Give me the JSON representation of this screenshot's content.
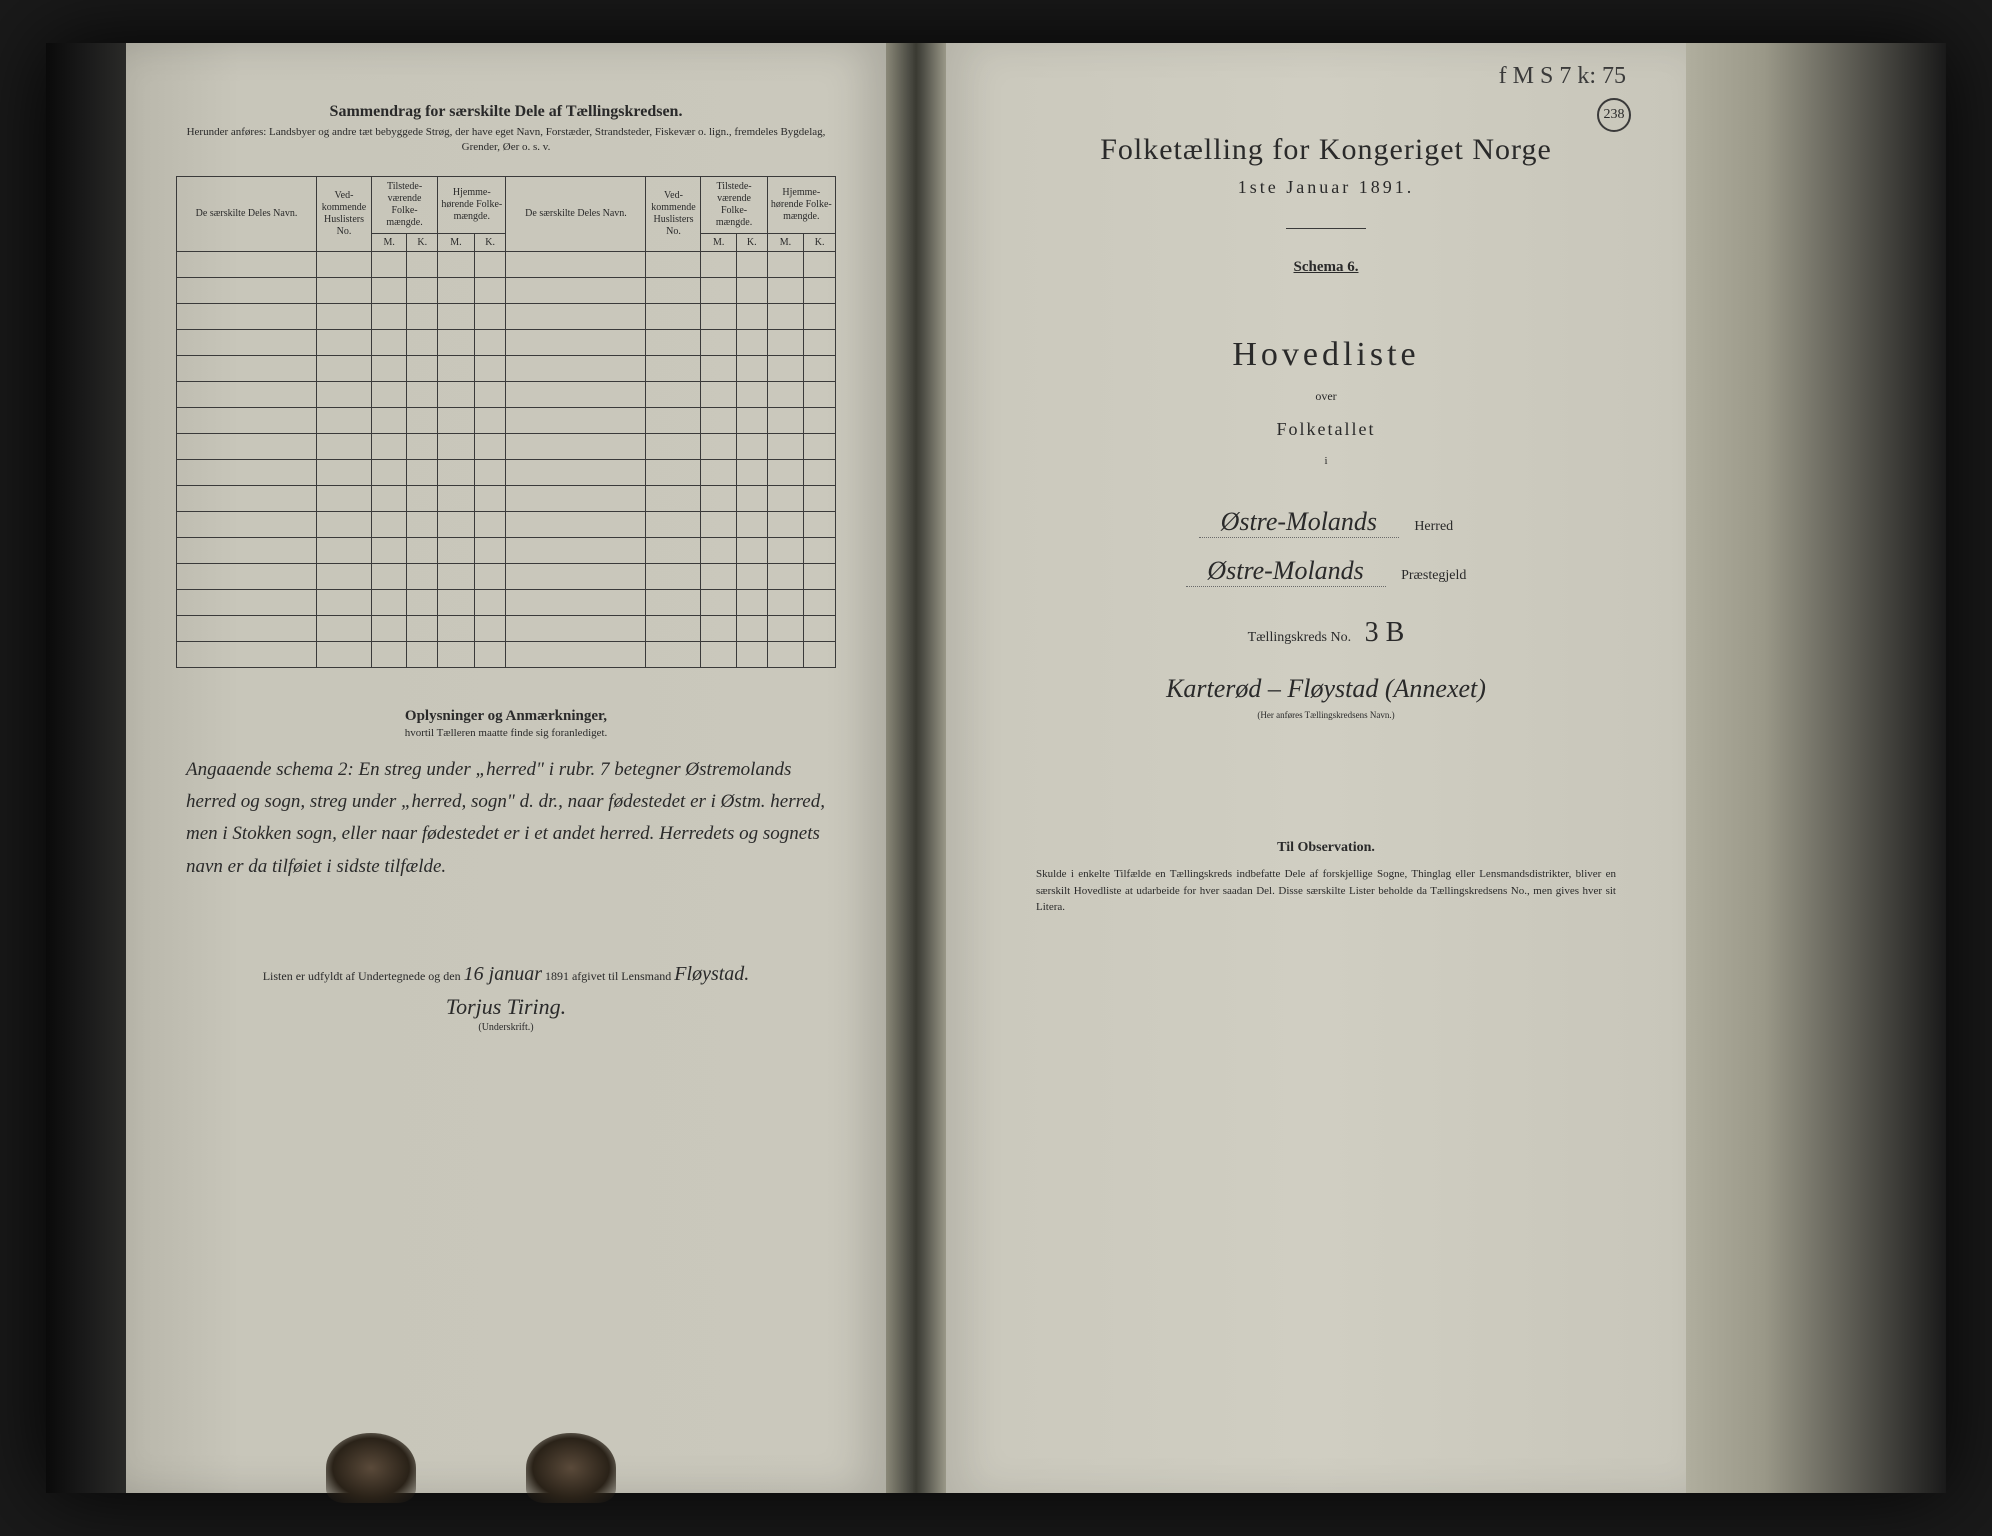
{
  "left": {
    "title": "Sammendrag for særskilte Dele af Tællingskredsen.",
    "subtitle": "Herunder anføres: Landsbyer og andre tæt bebyggede Strøg, der have eget Navn, Forstæder, Strandsteder, Fiskevær o. lign., fremdeles Bygdelag, Grender, Øer o. s. v.",
    "headers": {
      "name": "De særskilte Deles Navn.",
      "ved": "Ved-kommende Huslisters No.",
      "tilstede": "Tilstede-værende Folke-mængde.",
      "hjemme": "Hjemme-hørende Folke-mængde.",
      "m": "M.",
      "k": "K."
    },
    "notes_title": "Oplysninger og Anmærkninger,",
    "notes_sub": "hvortil Tælleren maatte finde sig foranlediget.",
    "handwriting": "Angaaende schema 2: En streg under „herred\" i rubr. 7 betegner Østremolands herred og sogn, streg under „herred, sogn\" d. dr., naar fødestedet er i Østm. herred, men i Stokken sogn, eller naar fødestedet er i et andet herred. Herredets og sognets navn er da tilføiet i sidste tilfælde.",
    "sig_prefix": "Listen er udfyldt af Undertegnede og den",
    "sig_date": "16 januar",
    "sig_mid": "1891 afgivet til Lensmand",
    "sig_lensmand": "Fløystad.",
    "sig_name": "Torjus Tiring.",
    "sig_under": "(Underskrift.)"
  },
  "right": {
    "top_mark": "f M S 7 k: 75",
    "circle": "238",
    "title": "Folketælling for Kongeriget Norge",
    "date": "1ste Januar 1891.",
    "schema": "Schema 6.",
    "hovedliste": "Hovedliste",
    "over": "over",
    "folketallet": "Folketallet",
    "i": "i",
    "herred_hand": "Østre-Molands",
    "herred_label": "Herred",
    "praest_hand": "Østre-Molands",
    "praest_label": "Præstegjeld",
    "kreds_label": "Tællingskreds No.",
    "kreds_no": "3 B",
    "kreds_name": "Karterød – Fløystad (Annexet)",
    "kreds_caption": "(Her anføres Tællingskredsens Navn.)",
    "obs_title": "Til Observation.",
    "obs_text": "Skulde i enkelte Tilfælde en Tællingskreds indbefatte Dele af forskjellige Sogne, Thinglag eller Lensmandsdistrikter, bliver en særskilt Hovedliste at udarbeide for hver saadan Del. Disse særskilte Lister beholde da Tællingskredsens No., men gives hver sit Litera."
  }
}
